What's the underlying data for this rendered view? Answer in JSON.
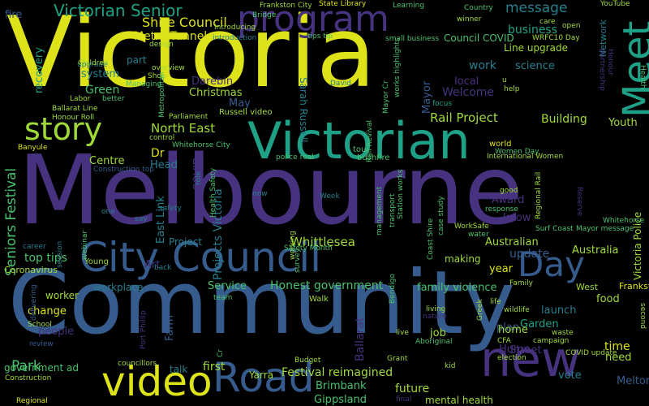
{
  "cloud": {
    "palette": {
      "yellow": "#dde318",
      "lime": "#a0da39",
      "green": "#4ac16d",
      "teal": "#1fa187",
      "cyan": "#277f8e",
      "blue": "#365c8d",
      "indigo": "#46327e",
      "purple": "#440154"
    },
    "words": [
      "Victoria",
      "Melbourne",
      "Community",
      "Victorian",
      "City Council",
      "program",
      "Meet",
      "video",
      "Road",
      "new",
      "Day",
      "story",
      "Victorian Senior",
      "Shire Council",
      "Metro Tunnel",
      "message",
      "business",
      "recovery",
      "fire",
      "part",
      "system",
      "Green",
      "Darebin",
      "Christmas",
      "May",
      "North East",
      "Sarah Russell",
      "Welcome",
      "local",
      "work",
      "science",
      "Rail Project",
      "Building",
      "Youth",
      "Mayor",
      "Seniors Festival",
      "Centre",
      "Head",
      "Dr",
      "East Link",
      "Projects Victoria",
      "COVID",
      "Award",
      "know",
      "update",
      "Australia",
      "Australian",
      "Whittlesea",
      "Project",
      "top tips",
      "Young",
      "Art",
      "year",
      "making",
      "Service",
      "Honest government",
      "family violence",
      "Victoria Police",
      "Park",
      "government ad",
      "Festival reimagined",
      "future",
      "mental health",
      "Gippsland",
      "Brimbank",
      "Yarra",
      "talk",
      "first",
      "job",
      "Ballarat",
      "worker",
      "workplace",
      "change",
      "people",
      "School",
      "review",
      "Farm",
      "Walk",
      "Port Phillip",
      "food",
      "time",
      "need",
      "launch",
      "plan",
      "Garden",
      "home",
      "Hume",
      "Street",
      "vote",
      "Melton City",
      "West",
      "Frankston",
      "Coronavirus",
      "Construction",
      "Regional",
      "Ballarat Line",
      "Honour Roll",
      "Labor",
      "design",
      "Introducing",
      "State Library",
      "Frankston City",
      "Learning",
      "Country",
      "Bridge",
      "winner",
      "care",
      "YouTube",
      "Network",
      "open",
      "Line upgrade",
      "Council COVID",
      "WRFC10 Day",
      "tips tip",
      "introduction",
      "small business",
      "works highlights",
      "Mayor Cr",
      "focus",
      "overview",
      "Managing",
      "Shop",
      "upgrade",
      "Children",
      "Russell video",
      "Parliament",
      "control",
      "Whitehorse City",
      "Health Safety",
      "working",
      "tour",
      "bushfire",
      "world",
      "Women Day",
      "International Women",
      "Health",
      "police real",
      "Rail Revival",
      "transport",
      "Station works",
      "webinar",
      "one",
      "say",
      "safety",
      "role",
      "now",
      "Week",
      "response",
      "good",
      "Regional Rail",
      "Reserve",
      "WorkSafe",
      "water",
      "Whitehorse",
      "Surf Coast",
      "Mayor message",
      "case study",
      "Coast Shire",
      "management",
      "Safety Month",
      "survey",
      "Bendigo",
      "life",
      "Family",
      "living",
      "nature",
      "Greek",
      "wildlife",
      "campaign",
      "waste",
      "COVID update",
      "second",
      "election",
      "CFA",
      "kid",
      "live",
      "Grant",
      "Aboriginal",
      "final",
      "Budget",
      "councillors",
      "Cr",
      "team",
      "back",
      "career",
      "session",
      "delivering",
      "Construction top",
      "Banyule",
      "Metropolitan",
      "partnership",
      "Honour",
      "better",
      "David",
      "help",
      "u"
    ]
  }
}
